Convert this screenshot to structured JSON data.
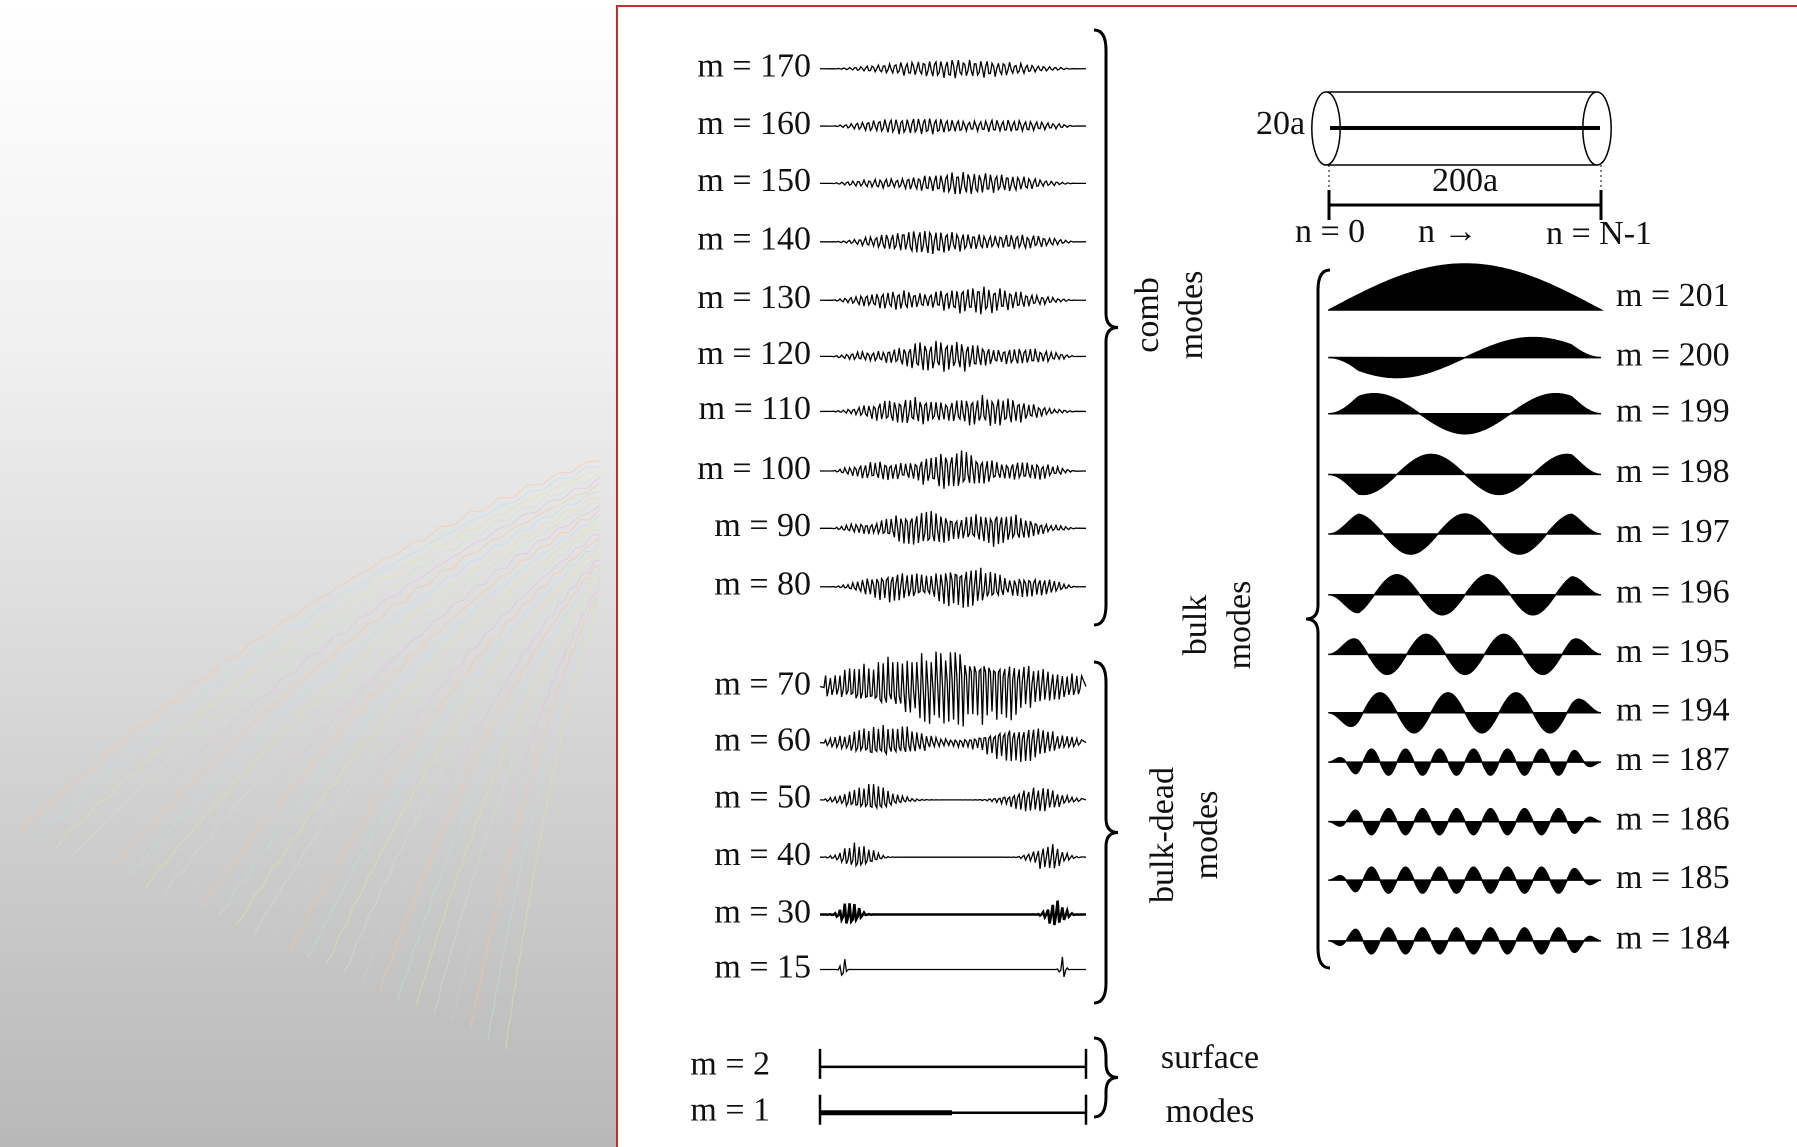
{
  "comb": {
    "labels": [
      "m = 170",
      "m = 160",
      "m = 150",
      "m = 140",
      "m = 130",
      "m = 120",
      "m = 110",
      "m = 100",
      "m = 90",
      "m = 80"
    ],
    "group": [
      "comb",
      "modes"
    ]
  },
  "bulk_dead": {
    "labels": [
      "m = 70",
      "m = 60",
      "m = 50",
      "m = 40",
      "m = 30",
      "m = 15"
    ],
    "group": [
      "bulk-dead",
      "modes"
    ]
  },
  "surface": {
    "labels": [
      "m = 2",
      "m = 1"
    ],
    "group": [
      "surface",
      "modes"
    ]
  },
  "bulk": {
    "labels": [
      "m = 201",
      "m = 200",
      "m = 199",
      "m = 198",
      "m = 197",
      "m = 196",
      "m = 195",
      "m = 194",
      "m = 187",
      "m = 186",
      "m = 185",
      "m = 184"
    ],
    "group": [
      "bulk",
      "modes"
    ]
  },
  "tube": {
    "diameter": "20a",
    "length": "200a",
    "start": "n = 0",
    "direction": "n →",
    "end": "n = N-1"
  }
}
